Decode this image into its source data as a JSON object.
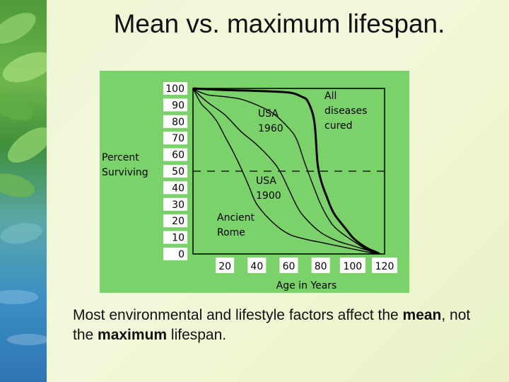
{
  "slide": {
    "title": "Mean vs. maximum lifespan.",
    "caption_part1": "Most environmental and lifestyle factors affect the ",
    "caption_bold1": "mean",
    "caption_part2": ", not the ",
    "caption_bold2": "maximum",
    "caption_part3": " lifespan."
  },
  "colors": {
    "chart_background": "#7bd16a",
    "curve": "#000000"
  },
  "chart_data": {
    "type": "line",
    "title": "",
    "xlabel": "Age in Years",
    "ylabel": "Percent Surviving",
    "xlim": [
      0,
      120
    ],
    "ylim": [
      0,
      100
    ],
    "x_ticks": [
      "20",
      "40",
      "60",
      "80",
      "100",
      "120"
    ],
    "y_ticks": [
      "0",
      "10",
      "20",
      "30",
      "40",
      "50",
      "60",
      "70",
      "80",
      "90",
      "100"
    ],
    "reference_line_y": 50,
    "series": [
      {
        "name": "All diseases cured",
        "label_lines": [
          "All",
          "diseases",
          "cured"
        ],
        "x": [
          0,
          20,
          40,
          60,
          68,
          72,
          76,
          78,
          80,
          82,
          84,
          86,
          88,
          90,
          95,
          100,
          105,
          110,
          115,
          117
        ],
        "y": [
          100,
          99,
          98.5,
          97.5,
          95,
          92,
          80,
          55,
          45,
          39,
          34,
          29,
          25,
          22,
          16,
          10,
          6,
          3,
          1,
          0
        ]
      },
      {
        "name": "USA 1960",
        "label_lines": [
          "USA",
          "1960"
        ],
        "x": [
          0,
          5,
          10,
          20,
          30,
          40,
          50,
          60,
          65,
          70,
          75,
          80,
          85,
          90,
          100,
          110,
          116
        ],
        "y": [
          100,
          97.5,
          96,
          95,
          93.5,
          90,
          85,
          76,
          69,
          55,
          42,
          30,
          21,
          15,
          8,
          2,
          0
        ]
      },
      {
        "name": "USA 1900",
        "label_lines": [
          "USA",
          "1900"
        ],
        "x": [
          0,
          5,
          10,
          20,
          30,
          40,
          50,
          55,
          60,
          65,
          70,
          80,
          90,
          100,
          110,
          116
        ],
        "y": [
          100,
          95,
          91,
          84,
          74,
          66,
          56,
          49,
          39,
          29,
          22,
          13,
          8,
          5,
          2,
          0
        ]
      },
      {
        "name": "Ancient Rome",
        "label_lines": [
          "Ancient",
          "Rome"
        ],
        "x": [
          0,
          5,
          10,
          15,
          20,
          25,
          30,
          35,
          40,
          50,
          60,
          70,
          80,
          90,
          100,
          110,
          115
        ],
        "y": [
          100,
          91,
          86,
          80,
          71,
          62,
          52,
          41,
          30,
          19,
          12,
          9,
          7,
          5,
          3,
          1,
          0
        ]
      }
    ]
  }
}
